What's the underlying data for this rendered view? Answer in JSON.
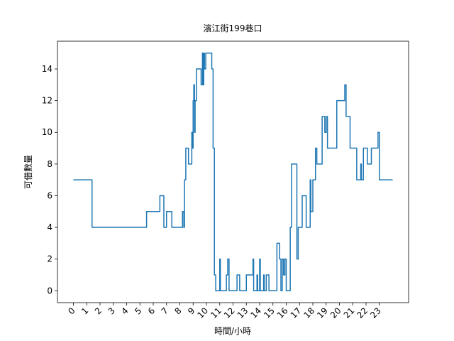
{
  "chart_data": {
    "type": "line",
    "drawstyle": "steps-post",
    "title": "濱江街199巷口",
    "xlabel": "時間/小時",
    "ylabel": "可借數量",
    "xlim": [
      -1.2,
      25.2
    ],
    "ylim": [
      -0.75,
      15.75
    ],
    "xticks": [
      0,
      1,
      2,
      3,
      4,
      5,
      6,
      7,
      8,
      9,
      10,
      11,
      12,
      13,
      14,
      15,
      16,
      17,
      18,
      19,
      20,
      21,
      22,
      23
    ],
    "yticks": [
      0,
      2,
      4,
      6,
      8,
      10,
      12,
      14
    ],
    "series": [
      {
        "color": "#1f77b4",
        "x": [
          0,
          1.4,
          5.5,
          6.5,
          6.8,
          7.0,
          7.4,
          8.2,
          8.3,
          8.35,
          8.45,
          8.65,
          8.9,
          8.95,
          9.0,
          9.05,
          9.1,
          9.15,
          9.25,
          9.6,
          9.7,
          9.75,
          9.8,
          9.85,
          9.95,
          10.4,
          10.5,
          10.6,
          10.7,
          11.0,
          11.05,
          11.5,
          11.6,
          11.7,
          12.3,
          12.5,
          13.0,
          13.5,
          13.55,
          13.8,
          13.85,
          14.0,
          14.05,
          14.3,
          14.35,
          14.5,
          14.7,
          15.3,
          15.5,
          15.6,
          15.7,
          15.8,
          15.9,
          16.0,
          16.3,
          16.4,
          16.8,
          16.9,
          17.2,
          17.5,
          17.8,
          17.85,
          18.0,
          18.2,
          18.3,
          18.7,
          18.9,
          19.0,
          19.1,
          19.8,
          20.4,
          20.5,
          20.8,
          21.3,
          21.6,
          21.65,
          21.8,
          22.1,
          22.4,
          22.9,
          23.0,
          24.0
        ],
        "values": [
          7,
          4,
          5,
          6,
          4,
          5,
          4,
          5,
          4,
          7,
          9,
          8,
          10,
          9,
          12,
          13,
          10,
          12,
          14,
          13,
          15,
          13,
          15,
          14,
          15,
          14,
          9,
          1,
          0,
          2,
          0,
          1,
          2,
          0,
          1,
          0,
          1,
          2,
          0,
          1,
          0,
          2,
          0,
          1,
          0,
          1,
          0,
          3,
          2,
          0,
          2,
          1,
          2,
          0,
          4,
          8,
          2,
          4,
          6,
          4,
          7,
          5,
          7,
          9,
          8,
          11,
          10,
          11,
          9,
          12,
          13,
          11,
          9,
          7,
          8,
          7,
          9,
          8,
          9,
          10,
          7,
          7
        ]
      }
    ]
  }
}
